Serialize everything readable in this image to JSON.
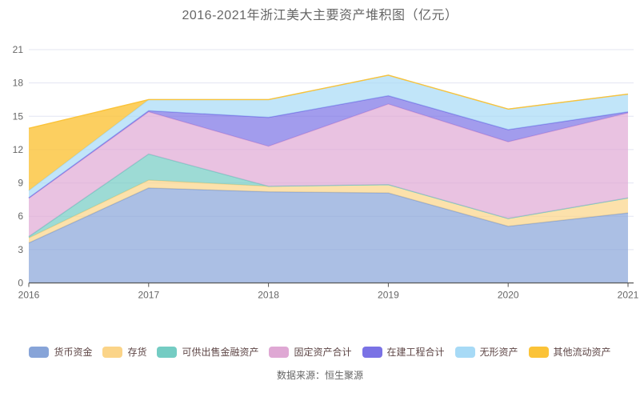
{
  "title": "2016-2021年浙江美大主要资产堆积图（亿元）",
  "source_note": "数据来源：恒生聚源",
  "colors": {
    "grid": "#e3e5f2",
    "axis": "#555555",
    "tick_label": "#666666",
    "title_text": "#666666",
    "legend_text": "#5e4646",
    "source_text": "#666666"
  },
  "chart_data": {
    "type": "area",
    "stacked": true,
    "title": "2016-2021年浙江美大主要资产堆积图（亿元）",
    "x": [
      "2016",
      "2017",
      "2018",
      "2019",
      "2020",
      "2021"
    ],
    "ylim": [
      0,
      21
    ],
    "yticks": [
      0,
      3,
      6,
      9,
      12,
      15,
      18,
      21
    ],
    "grid": true,
    "legend_position": "bottom",
    "series": [
      {
        "name": "货币资金",
        "color": "#87a4d8",
        "fill_opacity": 0.7,
        "values": [
          3.6,
          8.55,
          8.2,
          8.1,
          5.1,
          6.3
        ]
      },
      {
        "name": "存货",
        "color": "#fbd488",
        "fill_opacity": 0.7,
        "values": [
          0.45,
          0.7,
          0.5,
          0.75,
          0.7,
          1.35
        ]
      },
      {
        "name": "可供出售金融资产",
        "color": "#74ccc3",
        "fill_opacity": 0.7,
        "values": [
          0.12,
          2.35,
          0.0,
          0.0,
          0.0,
          0.0
        ]
      },
      {
        "name": "固定资产合计",
        "color": "#dfa8d4",
        "fill_opacity": 0.7,
        "values": [
          3.45,
          3.8,
          3.6,
          7.25,
          6.9,
          7.65
        ]
      },
      {
        "name": "在建工程合计",
        "color": "#7a72e5",
        "fill_opacity": 0.7,
        "values": [
          0.05,
          0.1,
          2.6,
          0.75,
          1.1,
          0.1
        ]
      },
      {
        "name": "无形资产",
        "color": "#a7daf6",
        "fill_opacity": 0.7,
        "values": [
          0.65,
          1.0,
          1.6,
          1.85,
          1.85,
          1.6
        ]
      },
      {
        "name": "其他流动资产",
        "color": "#fbc338",
        "fill_opacity": 0.8,
        "values": [
          5.6,
          0.0,
          0.0,
          0.0,
          0.0,
          0.0
        ]
      }
    ]
  }
}
